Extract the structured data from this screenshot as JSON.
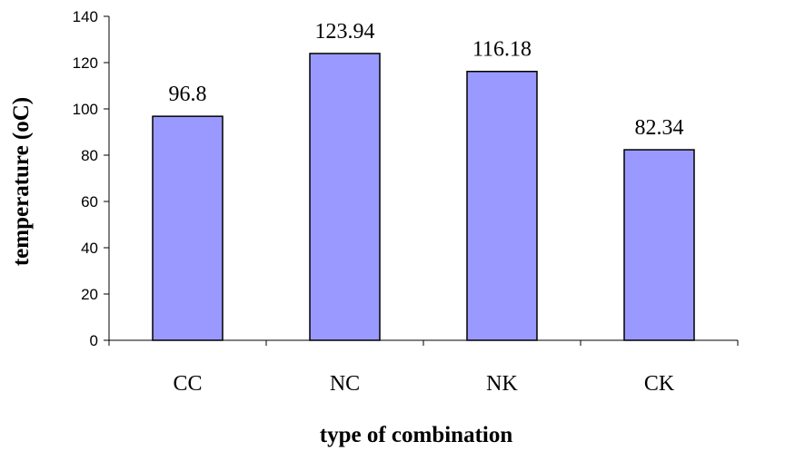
{
  "chart_data": {
    "type": "bar",
    "categories": [
      "CC",
      "NC",
      "NK",
      "CK"
    ],
    "values": [
      96.8,
      123.94,
      116.18,
      82.34
    ],
    "value_labels": [
      "96.8",
      "123.94",
      "116.18",
      "82.34"
    ],
    "title": "",
    "xlabel": "type of combination",
    "ylabel": "temperature (oC)",
    "ylim": [
      0,
      140
    ],
    "yticks": [
      0,
      20,
      40,
      60,
      80,
      100,
      120,
      140
    ],
    "grid": false,
    "legend": "none",
    "colors": {
      "bar_fill": "#9999ff",
      "bar_stroke": "#000000"
    }
  }
}
